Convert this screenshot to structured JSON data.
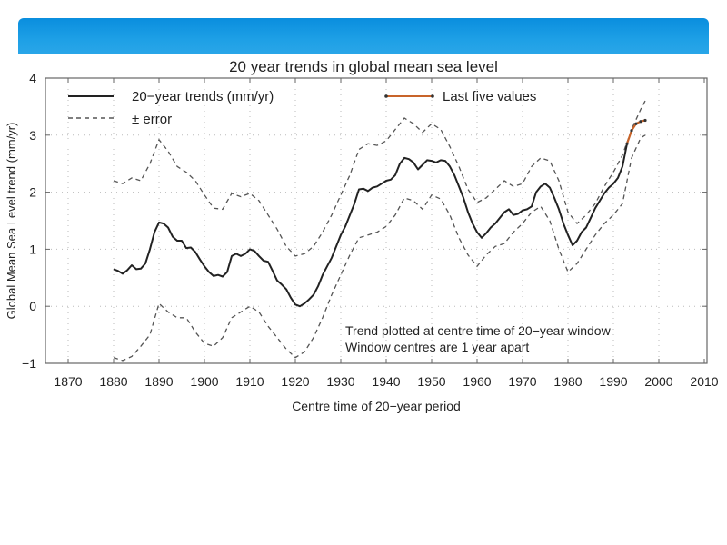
{
  "header": {
    "banner_color": "#1598e2"
  },
  "chart_data": {
    "type": "line",
    "title": "20 year trends in global mean sea level",
    "xlabel": "Centre time of 20−year period",
    "ylabel": "Global Mean Sea Level trend (mm/yr)",
    "xlim": [
      1865,
      2010
    ],
    "ylim": [
      -1,
      4
    ],
    "xticks": [
      1870,
      1880,
      1890,
      1900,
      1910,
      1920,
      1930,
      1940,
      1950,
      1960,
      1970,
      1980,
      1990,
      2000,
      2010
    ],
    "yticks": [
      -1,
      0,
      1,
      2,
      3,
      4
    ],
    "xtick_labels": [
      "1870",
      "1880",
      "1890",
      "1900",
      "1910",
      "1920",
      "1930",
      "1940",
      "1950",
      "1960",
      "1970",
      "1980",
      "1990",
      "2000",
      "2010"
    ],
    "ytick_labels": [
      "−1",
      "0",
      "1",
      "2",
      "3",
      "4"
    ],
    "grid": true,
    "legend_position": "top",
    "legend": [
      {
        "label": "20−year trends (mm/yr)",
        "style": "solid",
        "color": "#222222"
      },
      {
        "label": "± error",
        "style": "dashed",
        "color": "#555555"
      },
      {
        "label": "Last five values",
        "style": "solid-dots",
        "color": "#c8642a"
      }
    ],
    "annotations": [
      "Trend plotted at centre time of 20−year window",
      "Window centres are 1 year apart"
    ],
    "series": [
      {
        "name": "20−year trends (mm/yr)",
        "color": "#222222",
        "x": [
          1880,
          1881,
          1882,
          1883,
          1884,
          1885,
          1886,
          1887,
          1888,
          1889,
          1890,
          1891,
          1892,
          1893,
          1894,
          1895,
          1896,
          1897,
          1898,
          1899,
          1900,
          1901,
          1902,
          1903,
          1904,
          1905,
          1906,
          1907,
          1908,
          1909,
          1910,
          1911,
          1912,
          1913,
          1914,
          1915,
          1916,
          1917,
          1918,
          1919,
          1920,
          1921,
          1922,
          1923,
          1924,
          1925,
          1926,
          1927,
          1928,
          1929,
          1930,
          1931,
          1932,
          1933,
          1934,
          1935,
          1936,
          1937,
          1938,
          1939,
          1940,
          1941,
          1942,
          1943,
          1944,
          1945,
          1946,
          1947,
          1948,
          1949,
          1950,
          1951,
          1952,
          1953,
          1954,
          1955,
          1956,
          1957,
          1958,
          1959,
          1960,
          1961,
          1962,
          1963,
          1964,
          1965,
          1966,
          1967,
          1968,
          1969,
          1970,
          1971,
          1972,
          1973,
          1974,
          1975,
          1976,
          1977,
          1978,
          1979,
          1980,
          1981,
          1982,
          1983,
          1984,
          1985,
          1986,
          1987,
          1988,
          1989,
          1990,
          1991,
          1992,
          1993
        ],
        "y": [
          0.65,
          0.62,
          0.57,
          0.63,
          0.72,
          0.65,
          0.66,
          0.75,
          1.0,
          1.3,
          1.47,
          1.45,
          1.38,
          1.22,
          1.15,
          1.15,
          1.02,
          1.03,
          0.95,
          0.82,
          0.7,
          0.6,
          0.53,
          0.55,
          0.52,
          0.6,
          0.88,
          0.92,
          0.88,
          0.92,
          1.0,
          0.97,
          0.88,
          0.8,
          0.78,
          0.62,
          0.45,
          0.38,
          0.3,
          0.15,
          0.03,
          0.0,
          0.05,
          0.12,
          0.2,
          0.35,
          0.55,
          0.7,
          0.85,
          1.05,
          1.25,
          1.4,
          1.6,
          1.8,
          2.05,
          2.06,
          2.02,
          2.08,
          2.1,
          2.15,
          2.2,
          2.22,
          2.3,
          2.5,
          2.6,
          2.58,
          2.52,
          2.4,
          2.48,
          2.56,
          2.55,
          2.52,
          2.56,
          2.55,
          2.45,
          2.3,
          2.1,
          1.9,
          1.65,
          1.45,
          1.3,
          1.2,
          1.28,
          1.38,
          1.45,
          1.55,
          1.65,
          1.7,
          1.6,
          1.62,
          1.68,
          1.7,
          1.75,
          2.0,
          2.1,
          2.15,
          2.08,
          1.9,
          1.7,
          1.45,
          1.25,
          1.07,
          1.15,
          1.3,
          1.38,
          1.55,
          1.72,
          1.85,
          1.98,
          2.08,
          2.15,
          2.25,
          2.45,
          2.85
        ]
      },
      {
        "name": "Last five values",
        "color": "#c8642a",
        "x": [
          1993,
          1994,
          1995,
          1996,
          1997
        ],
        "y": [
          2.85,
          3.08,
          3.2,
          3.24,
          3.26
        ]
      },
      {
        "name": "upper error",
        "color": "#555555",
        "x": [
          1880,
          1882,
          1884,
          1886,
          1888,
          1890,
          1892,
          1894,
          1896,
          1898,
          1900,
          1902,
          1904,
          1906,
          1908,
          1910,
          1912,
          1914,
          1916,
          1918,
          1920,
          1922,
          1924,
          1926,
          1928,
          1930,
          1932,
          1934,
          1936,
          1938,
          1940,
          1942,
          1944,
          1946,
          1948,
          1950,
          1952,
          1954,
          1956,
          1958,
          1960,
          1962,
          1964,
          1966,
          1968,
          1970,
          1972,
          1974,
          1976,
          1978,
          1980,
          1982,
          1984,
          1986,
          1988,
          1990,
          1992,
          1994,
          1996,
          1997
        ],
        "y": [
          2.2,
          2.15,
          2.25,
          2.2,
          2.5,
          2.92,
          2.72,
          2.45,
          2.35,
          2.2,
          1.95,
          1.72,
          1.7,
          1.98,
          1.92,
          1.98,
          1.85,
          1.6,
          1.35,
          1.05,
          0.88,
          0.92,
          1.05,
          1.3,
          1.6,
          1.95,
          2.3,
          2.75,
          2.85,
          2.82,
          2.9,
          3.1,
          3.3,
          3.2,
          3.05,
          3.2,
          3.1,
          2.8,
          2.45,
          2.05,
          1.82,
          1.9,
          2.05,
          2.2,
          2.1,
          2.15,
          2.45,
          2.6,
          2.55,
          2.2,
          1.65,
          1.45,
          1.6,
          1.8,
          2.1,
          2.35,
          2.65,
          3.1,
          3.45,
          3.6
        ]
      },
      {
        "name": "lower error",
        "color": "#555555",
        "x": [
          1880,
          1882,
          1884,
          1886,
          1888,
          1890,
          1892,
          1894,
          1896,
          1898,
          1900,
          1902,
          1904,
          1906,
          1908,
          1910,
          1912,
          1914,
          1916,
          1918,
          1920,
          1922,
          1924,
          1926,
          1928,
          1930,
          1932,
          1934,
          1936,
          1938,
          1940,
          1942,
          1944,
          1946,
          1948,
          1950,
          1952,
          1954,
          1956,
          1958,
          1960,
          1962,
          1964,
          1966,
          1968,
          1970,
          1972,
          1974,
          1976,
          1978,
          1980,
          1982,
          1984,
          1986,
          1988,
          1990,
          1992,
          1994,
          1996,
          1997
        ],
        "y": [
          -0.9,
          -0.95,
          -0.88,
          -0.7,
          -0.5,
          0.05,
          -0.1,
          -0.2,
          -0.2,
          -0.45,
          -0.65,
          -0.7,
          -0.55,
          -0.2,
          -0.1,
          0.0,
          -0.1,
          -0.35,
          -0.55,
          -0.75,
          -0.9,
          -0.8,
          -0.55,
          -0.2,
          0.2,
          0.55,
          0.9,
          1.2,
          1.25,
          1.3,
          1.4,
          1.6,
          1.9,
          1.85,
          1.7,
          1.95,
          1.88,
          1.6,
          1.2,
          0.9,
          0.7,
          0.9,
          1.05,
          1.1,
          1.3,
          1.45,
          1.65,
          1.75,
          1.5,
          1.0,
          0.6,
          0.75,
          1.0,
          1.25,
          1.45,
          1.6,
          1.8,
          2.6,
          2.95,
          3.0
        ]
      }
    ]
  }
}
